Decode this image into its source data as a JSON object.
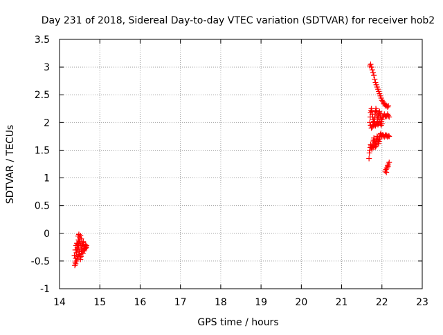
{
  "chart_data": {
    "type": "scatter",
    "title": "Day 231 of 2018, Sidereal Day-to-day VTEC variation (SDTVAR) for receiver hob2",
    "xlabel": "GPS time / hours",
    "ylabel": "SDTVAR / TECUs",
    "xlim": [
      14,
      23
    ],
    "ylim": [
      -1,
      3.5
    ],
    "xticks": [
      14,
      15,
      16,
      17,
      18,
      19,
      20,
      21,
      22,
      23
    ],
    "yticks": [
      -1,
      -0.5,
      0,
      0.5,
      1,
      1.5,
      2,
      2.5,
      3,
      3.5
    ],
    "xtick_labels": [
      "14",
      "15",
      "16",
      "17",
      "18",
      "19",
      "20",
      "21",
      "22",
      "23"
    ],
    "ytick_labels": [
      "-1",
      "-0.5",
      "0",
      "0.5",
      "1",
      "1.5",
      "2",
      "2.5",
      "3",
      "3.5"
    ],
    "grid": true,
    "marker": "plus",
    "color": "#ff0000",
    "series": [
      {
        "name": "SDTVAR",
        "points": [
          [
            14.38,
            -0.58
          ],
          [
            14.39,
            -0.52
          ],
          [
            14.4,
            -0.45
          ],
          [
            14.41,
            -0.4
          ],
          [
            14.42,
            -0.35
          ],
          [
            14.43,
            -0.3
          ],
          [
            14.44,
            -0.25
          ],
          [
            14.45,
            -0.2
          ],
          [
            14.46,
            -0.18
          ],
          [
            14.47,
            -0.22
          ],
          [
            14.48,
            -0.28
          ],
          [
            14.49,
            -0.33
          ],
          [
            14.5,
            -0.38
          ],
          [
            14.51,
            -0.43
          ],
          [
            14.52,
            -0.47
          ],
          [
            14.53,
            -0.42
          ],
          [
            14.54,
            -0.36
          ],
          [
            14.55,
            -0.3
          ],
          [
            14.56,
            -0.25
          ],
          [
            14.57,
            -0.2
          ],
          [
            14.58,
            -0.17
          ],
          [
            14.59,
            -0.15
          ],
          [
            14.6,
            -0.2
          ],
          [
            14.61,
            -0.25
          ],
          [
            14.62,
            -0.28
          ],
          [
            14.63,
            -0.24
          ],
          [
            14.64,
            -0.2
          ],
          [
            14.65,
            -0.24
          ],
          [
            14.66,
            -0.26
          ],
          [
            14.67,
            -0.22
          ],
          [
            14.46,
            -0.05
          ],
          [
            14.48,
            -0.02
          ],
          [
            14.5,
            -0.08
          ],
          [
            14.52,
            -0.04
          ],
          [
            14.54,
            -0.1
          ],
          [
            14.47,
            -0.12
          ],
          [
            14.49,
            -0.15
          ],
          [
            14.51,
            -0.18
          ],
          [
            14.53,
            -0.22
          ],
          [
            14.55,
            -0.28
          ],
          [
            14.4,
            -0.55
          ],
          [
            14.42,
            -0.5
          ],
          [
            14.44,
            -0.46
          ],
          [
            14.46,
            -0.42
          ],
          [
            14.48,
            -0.38
          ],
          [
            14.37,
            -0.4
          ],
          [
            14.39,
            -0.3
          ],
          [
            14.41,
            -0.22
          ],
          [
            14.43,
            -0.18
          ],
          [
            14.45,
            -0.28
          ],
          [
            14.56,
            -0.32
          ],
          [
            14.58,
            -0.36
          ],
          [
            14.6,
            -0.32
          ],
          [
            14.62,
            -0.3
          ],
          [
            14.64,
            -0.27
          ],
          [
            21.7,
            3.02
          ],
          [
            21.72,
            3.05
          ],
          [
            21.74,
            3.0
          ],
          [
            21.76,
            2.95
          ],
          [
            21.78,
            2.9
          ],
          [
            21.8,
            2.85
          ],
          [
            21.82,
            2.78
          ],
          [
            21.84,
            2.72
          ],
          [
            21.86,
            2.68
          ],
          [
            21.88,
            2.64
          ],
          [
            21.9,
            2.6
          ],
          [
            21.92,
            2.56
          ],
          [
            21.94,
            2.52
          ],
          [
            21.96,
            2.48
          ],
          [
            21.98,
            2.44
          ],
          [
            22.0,
            2.4
          ],
          [
            22.02,
            2.38
          ],
          [
            22.04,
            2.35
          ],
          [
            22.06,
            2.33
          ],
          [
            22.08,
            2.3
          ],
          [
            22.1,
            2.32
          ],
          [
            22.12,
            2.3
          ],
          [
            22.14,
            2.28
          ],
          [
            22.16,
            2.3
          ],
          [
            21.7,
            2.0
          ],
          [
            21.71,
            2.1
          ],
          [
            21.72,
            2.18
          ],
          [
            21.73,
            2.22
          ],
          [
            21.74,
            2.25
          ],
          [
            21.75,
            2.2
          ],
          [
            21.76,
            2.15
          ],
          [
            21.77,
            2.1
          ],
          [
            21.78,
            2.05
          ],
          [
            21.79,
            2.0
          ],
          [
            21.8,
            1.95
          ],
          [
            21.81,
            2.0
          ],
          [
            21.82,
            2.08
          ],
          [
            21.83,
            2.15
          ],
          [
            21.84,
            2.2
          ],
          [
            21.85,
            2.25
          ],
          [
            21.86,
            2.22
          ],
          [
            21.87,
            2.18
          ],
          [
            21.88,
            2.12
          ],
          [
            21.89,
            2.08
          ],
          [
            21.9,
            2.05
          ],
          [
            21.91,
            2.1
          ],
          [
            21.92,
            2.15
          ],
          [
            21.93,
            2.18
          ],
          [
            21.94,
            2.2
          ],
          [
            21.95,
            2.16
          ],
          [
            21.96,
            2.12
          ],
          [
            21.97,
            2.08
          ],
          [
            21.98,
            2.05
          ],
          [
            21.99,
            2.02
          ],
          [
            22.0,
            2.05
          ],
          [
            22.02,
            2.1
          ],
          [
            22.04,
            2.12
          ],
          [
            22.06,
            2.15
          ],
          [
            22.08,
            2.12
          ],
          [
            22.1,
            2.1
          ],
          [
            22.12,
            2.12
          ],
          [
            22.14,
            2.15
          ],
          [
            22.16,
            2.12
          ],
          [
            22.18,
            2.1
          ],
          [
            21.72,
            1.95
          ],
          [
            21.74,
            1.9
          ],
          [
            21.76,
            1.92
          ],
          [
            21.78,
            1.96
          ],
          [
            21.8,
            2.02
          ],
          [
            21.82,
            1.98
          ],
          [
            21.84,
            1.94
          ],
          [
            21.86,
            1.97
          ],
          [
            21.88,
            2.0
          ],
          [
            21.9,
            1.96
          ],
          [
            21.92,
            1.98
          ],
          [
            21.94,
            2.02
          ],
          [
            21.96,
            1.98
          ],
          [
            21.98,
            1.95
          ],
          [
            22.0,
            1.98
          ],
          [
            21.68,
            1.35
          ],
          [
            21.69,
            1.45
          ],
          [
            21.7,
            1.5
          ],
          [
            21.71,
            1.55
          ],
          [
            21.72,
            1.6
          ],
          [
            21.73,
            1.58
          ],
          [
            21.74,
            1.55
          ],
          [
            21.75,
            1.52
          ],
          [
            21.76,
            1.55
          ],
          [
            21.77,
            1.6
          ],
          [
            21.78,
            1.65
          ],
          [
            21.79,
            1.68
          ],
          [
            21.8,
            1.72
          ],
          [
            21.81,
            1.68
          ],
          [
            21.82,
            1.65
          ],
          [
            21.83,
            1.62
          ],
          [
            21.84,
            1.6
          ],
          [
            21.85,
            1.63
          ],
          [
            21.86,
            1.66
          ],
          [
            21.87,
            1.7
          ],
          [
            21.88,
            1.75
          ],
          [
            21.89,
            1.72
          ],
          [
            21.9,
            1.68
          ],
          [
            21.91,
            1.65
          ],
          [
            21.92,
            1.62
          ],
          [
            21.93,
            1.66
          ],
          [
            21.94,
            1.7
          ],
          [
            21.95,
            1.74
          ],
          [
            21.96,
            1.78
          ],
          [
            21.97,
            1.8
          ],
          [
            21.98,
            1.78
          ],
          [
            21.99,
            1.76
          ],
          [
            22.0,
            1.75
          ],
          [
            22.02,
            1.78
          ],
          [
            22.04,
            1.76
          ],
          [
            22.06,
            1.74
          ],
          [
            22.08,
            1.76
          ],
          [
            22.1,
            1.78
          ],
          [
            22.12,
            1.76
          ],
          [
            22.14,
            1.74
          ],
          [
            22.16,
            1.76
          ],
          [
            22.18,
            1.75
          ],
          [
            21.78,
            1.58
          ],
          [
            21.8,
            1.55
          ],
          [
            21.82,
            1.6
          ],
          [
            21.84,
            1.56
          ],
          [
            21.86,
            1.58
          ],
          [
            22.08,
            1.12
          ],
          [
            22.1,
            1.15
          ],
          [
            22.12,
            1.18
          ],
          [
            22.14,
            1.22
          ],
          [
            22.16,
            1.25
          ],
          [
            22.18,
            1.28
          ],
          [
            22.11,
            1.1
          ],
          [
            22.15,
            1.2
          ]
        ]
      }
    ]
  }
}
